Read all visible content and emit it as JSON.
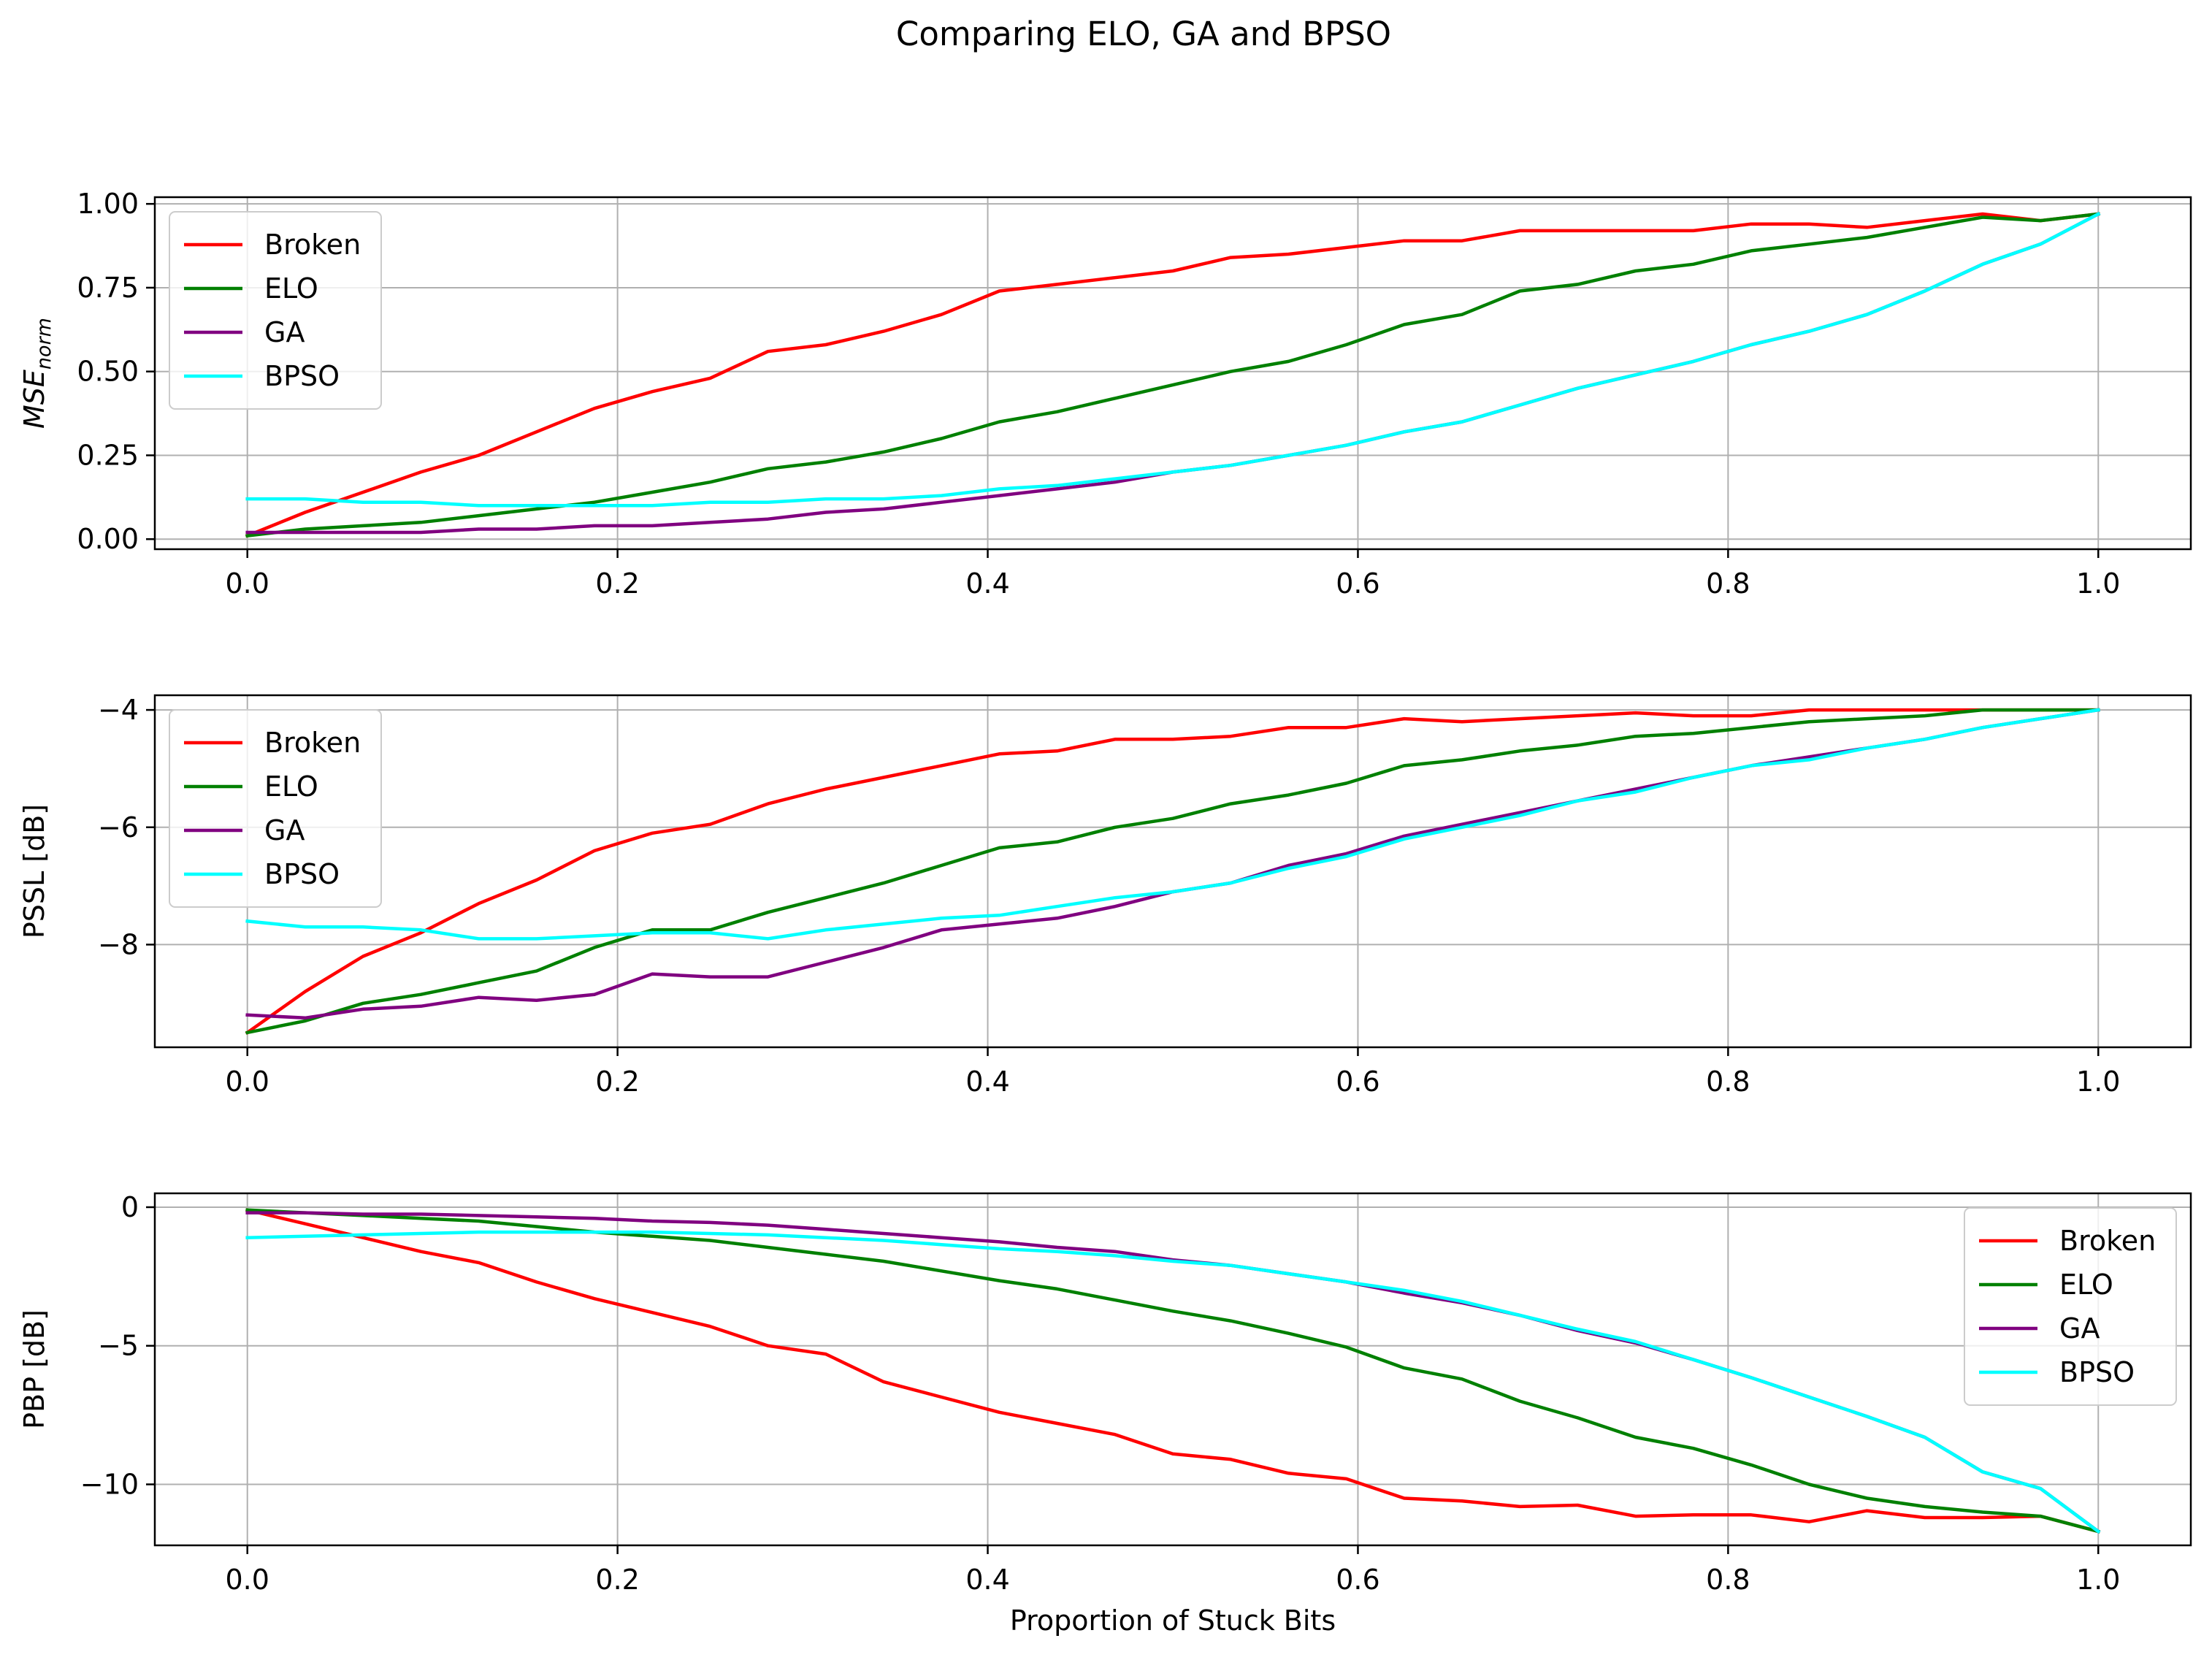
{
  "figure": {
    "title": "Comparing ELO, GA and BPSO"
  },
  "chart_data": [
    {
      "type": "line",
      "title": "",
      "xlabel": "",
      "ylabel": "MSE",
      "ylabel_sub": "norm",
      "xlim": [
        -0.05,
        1.05
      ],
      "ylim": [
        -0.03,
        1.02
      ],
      "xticks": [
        0.0,
        0.2,
        0.4,
        0.6,
        0.8,
        1.0
      ],
      "xtick_labels": [
        "0.0",
        "0.2",
        "0.4",
        "0.6",
        "0.8",
        "1.0"
      ],
      "yticks": [
        0.0,
        0.25,
        0.5,
        0.75,
        1.0
      ],
      "ytick_labels": [
        "0.00",
        "0.25",
        "0.50",
        "0.75",
        "1.00"
      ],
      "grid": true,
      "legend_position": "upper-left",
      "x": [
        0.0,
        0.03125,
        0.0625,
        0.09375,
        0.125,
        0.15625,
        0.1875,
        0.21875,
        0.25,
        0.28125,
        0.3125,
        0.34375,
        0.375,
        0.40625,
        0.4375,
        0.46875,
        0.5,
        0.53125,
        0.5625,
        0.59375,
        0.625,
        0.65625,
        0.6875,
        0.71875,
        0.75,
        0.78125,
        0.8125,
        0.84375,
        0.875,
        0.90625,
        0.9375,
        0.96875,
        1.0
      ],
      "series": [
        {
          "name": "Broken",
          "color": "#ff0000",
          "values": [
            0.01,
            0.08,
            0.14,
            0.2,
            0.25,
            0.32,
            0.39,
            0.44,
            0.48,
            0.56,
            0.58,
            0.62,
            0.67,
            0.74,
            0.76,
            0.78,
            0.8,
            0.84,
            0.85,
            0.87,
            0.89,
            0.89,
            0.92,
            0.92,
            0.92,
            0.92,
            0.94,
            0.94,
            0.93,
            0.95,
            0.97,
            0.95,
            0.97
          ]
        },
        {
          "name": "ELO",
          "color": "#008000",
          "values": [
            0.01,
            0.03,
            0.04,
            0.05,
            0.07,
            0.09,
            0.11,
            0.14,
            0.17,
            0.21,
            0.23,
            0.26,
            0.3,
            0.35,
            0.38,
            0.42,
            0.46,
            0.5,
            0.53,
            0.58,
            0.64,
            0.67,
            0.74,
            0.76,
            0.8,
            0.82,
            0.86,
            0.88,
            0.9,
            0.93,
            0.96,
            0.95,
            0.97
          ]
        },
        {
          "name": "GA",
          "color": "#800080",
          "values": [
            0.02,
            0.02,
            0.02,
            0.02,
            0.03,
            0.03,
            0.04,
            0.04,
            0.05,
            0.06,
            0.08,
            0.09,
            0.11,
            0.13,
            0.15,
            0.17,
            0.2,
            0.22,
            0.25,
            0.28,
            0.32,
            0.35,
            0.4,
            0.45,
            0.49,
            0.53,
            0.58,
            0.62,
            0.67,
            0.74,
            0.82,
            0.88,
            0.97
          ]
        },
        {
          "name": "BPSO",
          "color": "#00ffff",
          "values": [
            0.12,
            0.12,
            0.11,
            0.11,
            0.1,
            0.1,
            0.1,
            0.1,
            0.11,
            0.11,
            0.12,
            0.12,
            0.13,
            0.15,
            0.16,
            0.18,
            0.2,
            0.22,
            0.25,
            0.28,
            0.32,
            0.35,
            0.4,
            0.45,
            0.49,
            0.53,
            0.58,
            0.62,
            0.67,
            0.74,
            0.82,
            0.88,
            0.97
          ]
        }
      ]
    },
    {
      "type": "line",
      "title": "",
      "xlabel": "",
      "ylabel": "PSSL [dB]",
      "xlim": [
        -0.05,
        1.05
      ],
      "ylim": [
        -9.75,
        -3.75
      ],
      "xticks": [
        0.0,
        0.2,
        0.4,
        0.6,
        0.8,
        1.0
      ],
      "xtick_labels": [
        "0.0",
        "0.2",
        "0.4",
        "0.6",
        "0.8",
        "1.0"
      ],
      "yticks": [
        -8,
        -6,
        -4
      ],
      "ytick_labels": [
        "−8",
        "−6",
        "−4"
      ],
      "grid": true,
      "legend_position": "upper-left",
      "x": [
        0.0,
        0.03125,
        0.0625,
        0.09375,
        0.125,
        0.15625,
        0.1875,
        0.21875,
        0.25,
        0.28125,
        0.3125,
        0.34375,
        0.375,
        0.40625,
        0.4375,
        0.46875,
        0.5,
        0.53125,
        0.5625,
        0.59375,
        0.625,
        0.65625,
        0.6875,
        0.71875,
        0.75,
        0.78125,
        0.8125,
        0.84375,
        0.875,
        0.90625,
        0.9375,
        0.96875,
        1.0
      ],
      "series": [
        {
          "name": "Broken",
          "color": "#ff0000",
          "values": [
            -9.5,
            -8.8,
            -8.2,
            -7.8,
            -7.3,
            -6.9,
            -6.4,
            -6.1,
            -5.95,
            -5.6,
            -5.35,
            -5.15,
            -4.95,
            -4.75,
            -4.7,
            -4.5,
            -4.5,
            -4.45,
            -4.3,
            -4.3,
            -4.15,
            -4.2,
            -4.15,
            -4.1,
            -4.05,
            -4.1,
            -4.1,
            -4.0,
            -4.0,
            -4.0,
            -4.0,
            -4.0,
            -4.0
          ]
        },
        {
          "name": "ELO",
          "color": "#008000",
          "values": [
            -9.5,
            -9.3,
            -9.0,
            -8.85,
            -8.65,
            -8.45,
            -8.05,
            -7.75,
            -7.75,
            -7.45,
            -7.2,
            -6.95,
            -6.65,
            -6.35,
            -6.25,
            -6.0,
            -5.85,
            -5.6,
            -5.45,
            -5.25,
            -4.95,
            -4.85,
            -4.7,
            -4.6,
            -4.45,
            -4.4,
            -4.3,
            -4.2,
            -4.15,
            -4.1,
            -4.0,
            -4.0,
            -4.0
          ]
        },
        {
          "name": "GA",
          "color": "#800080",
          "values": [
            -9.2,
            -9.25,
            -9.1,
            -9.05,
            -8.9,
            -8.95,
            -8.85,
            -8.5,
            -8.55,
            -8.55,
            -8.3,
            -8.05,
            -7.75,
            -7.65,
            -7.55,
            -7.35,
            -7.1,
            -6.95,
            -6.65,
            -6.45,
            -6.15,
            -5.95,
            -5.75,
            -5.55,
            -5.35,
            -5.15,
            -4.95,
            -4.8,
            -4.65,
            -4.5,
            -4.3,
            -4.15,
            -4.0
          ]
        },
        {
          "name": "BPSO",
          "color": "#00ffff",
          "values": [
            -7.6,
            -7.7,
            -7.7,
            -7.75,
            -7.9,
            -7.9,
            -7.85,
            -7.8,
            -7.8,
            -7.9,
            -7.75,
            -7.65,
            -7.55,
            -7.5,
            -7.35,
            -7.2,
            -7.1,
            -6.95,
            -6.7,
            -6.5,
            -6.2,
            -6.0,
            -5.8,
            -5.55,
            -5.4,
            -5.15,
            -4.95,
            -4.85,
            -4.65,
            -4.5,
            -4.3,
            -4.15,
            -4.0
          ]
        }
      ]
    },
    {
      "type": "line",
      "title": "",
      "xlabel": "Proportion of Stuck Bits",
      "ylabel": "PBP [dB]",
      "xlim": [
        -0.05,
        1.05
      ],
      "ylim": [
        -12.2,
        0.5
      ],
      "xticks": [
        0.0,
        0.2,
        0.4,
        0.6,
        0.8,
        1.0
      ],
      "xtick_labels": [
        "0.0",
        "0.2",
        "0.4",
        "0.6",
        "0.8",
        "1.0"
      ],
      "yticks": [
        -10,
        -5,
        0
      ],
      "ytick_labels": [
        "−10",
        "−5",
        "0"
      ],
      "grid": true,
      "legend_position": "upper-right",
      "x": [
        0.0,
        0.03125,
        0.0625,
        0.09375,
        0.125,
        0.15625,
        0.1875,
        0.21875,
        0.25,
        0.28125,
        0.3125,
        0.34375,
        0.375,
        0.40625,
        0.4375,
        0.46875,
        0.5,
        0.53125,
        0.5625,
        0.59375,
        0.625,
        0.65625,
        0.6875,
        0.71875,
        0.75,
        0.78125,
        0.8125,
        0.84375,
        0.875,
        0.90625,
        0.9375,
        0.96875,
        1.0
      ],
      "series": [
        {
          "name": "Broken",
          "color": "#ff0000",
          "values": [
            -0.1,
            -0.6,
            -1.1,
            -1.6,
            -2.0,
            -2.7,
            -3.3,
            -3.8,
            -4.3,
            -5.0,
            -5.3,
            -6.3,
            -6.85,
            -7.4,
            -7.8,
            -8.2,
            -8.9,
            -9.1,
            -9.6,
            -9.8,
            -10.5,
            -10.6,
            -10.8,
            -10.75,
            -11.15,
            -11.1,
            -11.1,
            -11.35,
            -10.95,
            -11.2,
            -11.2,
            -11.15,
            -11.7
          ]
        },
        {
          "name": "ELO",
          "color": "#008000",
          "values": [
            -0.1,
            -0.2,
            -0.3,
            -0.4,
            -0.5,
            -0.7,
            -0.9,
            -1.05,
            -1.2,
            -1.45,
            -1.7,
            -1.95,
            -2.3,
            -2.65,
            -2.95,
            -3.35,
            -3.75,
            -4.1,
            -4.55,
            -5.05,
            -5.8,
            -6.2,
            -7.0,
            -7.6,
            -8.3,
            -8.7,
            -9.3,
            -10.0,
            -10.5,
            -10.8,
            -11.0,
            -11.15,
            -11.7
          ]
        },
        {
          "name": "GA",
          "color": "#800080",
          "values": [
            -0.2,
            -0.2,
            -0.25,
            -0.25,
            -0.3,
            -0.35,
            -0.4,
            -0.5,
            -0.55,
            -0.65,
            -0.8,
            -0.95,
            -1.1,
            -1.25,
            -1.45,
            -1.6,
            -1.9,
            -2.1,
            -2.4,
            -2.7,
            -3.1,
            -3.45,
            -3.9,
            -4.45,
            -4.9,
            -5.5,
            -6.15,
            -6.85,
            -7.55,
            -8.3,
            -9.55,
            -10.15,
            -11.7
          ]
        },
        {
          "name": "BPSO",
          "color": "#00ffff",
          "values": [
            -1.1,
            -1.05,
            -1.0,
            -0.95,
            -0.9,
            -0.9,
            -0.9,
            -0.9,
            -0.95,
            -1.0,
            -1.1,
            -1.2,
            -1.35,
            -1.5,
            -1.6,
            -1.75,
            -1.95,
            -2.1,
            -2.4,
            -2.7,
            -3.0,
            -3.4,
            -3.9,
            -4.4,
            -4.85,
            -5.5,
            -6.15,
            -6.85,
            -7.55,
            -8.3,
            -9.55,
            -10.15,
            -11.7
          ]
        }
      ]
    }
  ]
}
